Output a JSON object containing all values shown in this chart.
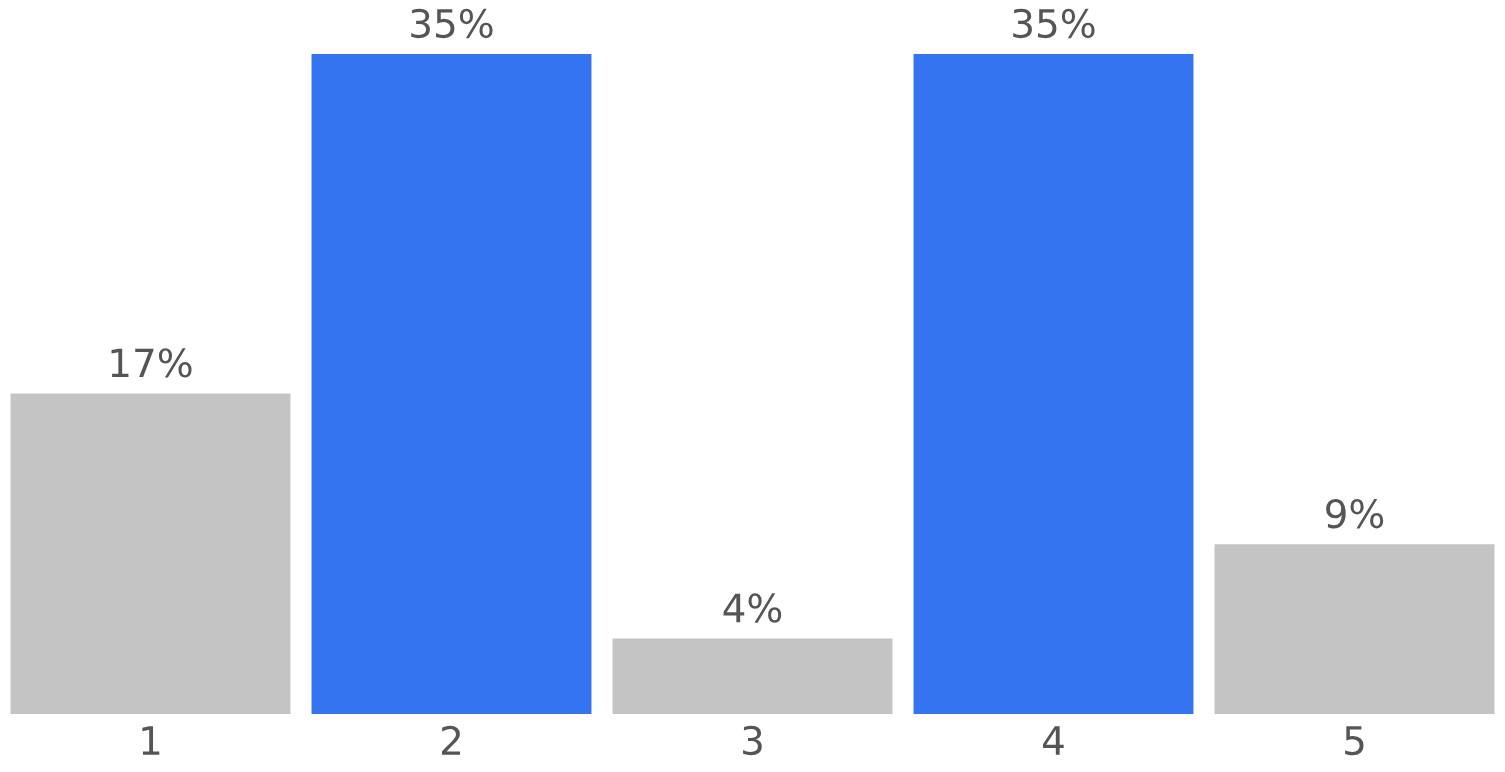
{
  "chart_data": {
    "type": "bar",
    "categories": [
      "1",
      "2",
      "3",
      "4",
      "5"
    ],
    "values": [
      17,
      35,
      4,
      35,
      9
    ],
    "colors": [
      "#c4c4c4",
      "#3574f0",
      "#c4c4c4",
      "#3574f0",
      "#c4c4c4"
    ],
    "value_labels": [
      "17%",
      "35%",
      "4%",
      "35%",
      "9%"
    ],
    "grid": false
  }
}
